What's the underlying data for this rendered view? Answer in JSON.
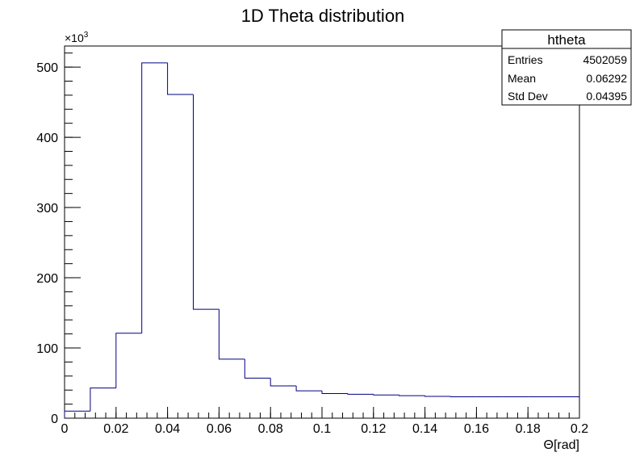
{
  "chart_data": {
    "type": "bar",
    "title": "1D Theta distribution",
    "xlabel": "Θ[rad]",
    "ylabel": "",
    "y_multiplier_label": "×10",
    "y_multiplier_exponent": "3",
    "xlim": [
      0,
      0.2
    ],
    "ylim": [
      0,
      530
    ],
    "x_ticks": [
      0,
      0.02,
      0.04,
      0.06,
      0.08,
      0.1,
      0.12,
      0.14,
      0.16,
      0.18,
      0.2
    ],
    "x_tick_labels": [
      "0",
      "0.02",
      "0.04",
      "0.06",
      "0.08",
      "0.1",
      "0.12",
      "0.14",
      "0.16",
      "0.18",
      "0.2"
    ],
    "y_ticks": [
      0,
      100,
      200,
      300,
      400,
      500
    ],
    "y_tick_labels": [
      "0",
      "100",
      "200",
      "300",
      "400",
      "500"
    ],
    "bin_edges": [
      0,
      0.01,
      0.02,
      0.03,
      0.04,
      0.05,
      0.06,
      0.07,
      0.08,
      0.09,
      0.1,
      0.11,
      0.12,
      0.13,
      0.14,
      0.15,
      0.16,
      0.17,
      0.18,
      0.19,
      0.2
    ],
    "values": [
      10,
      43,
      121,
      506,
      461,
      155,
      84,
      57,
      46,
      39,
      35,
      34,
      33,
      32,
      31,
      30.5,
      30.5,
      30.5,
      30.5,
      30.5
    ],
    "line_color": "#000080",
    "legend": "top-right",
    "grid": false
  },
  "stats_box": {
    "title": "htheta",
    "rows": [
      {
        "label": "Entries",
        "value": "4502059"
      },
      {
        "label": "Mean",
        "value": "0.06292"
      },
      {
        "label": "Std Dev",
        "value": "0.04395"
      }
    ]
  }
}
